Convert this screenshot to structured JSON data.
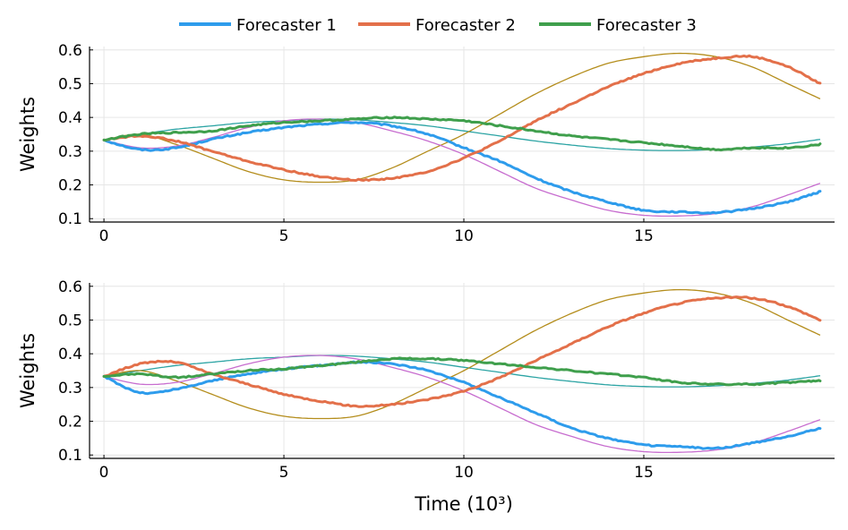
{
  "chart_data": {
    "type": "line",
    "legend": {
      "placement": "top-center",
      "entries": [
        {
          "name": "Forecaster 1",
          "color": "#2e9cec"
        },
        {
          "name": "Forecaster 2",
          "color": "#e3704a"
        },
        {
          "name": "Forecaster 3",
          "color": "#3f9f4c"
        }
      ]
    },
    "reference_colors": [
      "#2ca4a4",
      "#b48d1c",
      "#c76dcf"
    ],
    "panels": [
      {
        "ylabel": "Weights",
        "xlabel": "",
        "xlim": [
          -0.4,
          20.3
        ],
        "ylim": [
          0.09,
          0.61
        ],
        "xticks": [
          0,
          5,
          10,
          15
        ],
        "xtick_labels": [
          "0",
          "5",
          "10",
          "15"
        ],
        "yticks": [
          0.1,
          0.2,
          0.3,
          0.4,
          0.5,
          0.6
        ],
        "ytick_labels": [
          "0.1",
          "0.2",
          "0.3",
          "0.4",
          "0.5",
          "0.6"
        ],
        "grid": true,
        "x": [
          0,
          1,
          2,
          3,
          4,
          5,
          6,
          7,
          8,
          9,
          10,
          11,
          12,
          13,
          14,
          15,
          16,
          17,
          18,
          19,
          19.9
        ],
        "series": [
          {
            "name": "Forecaster 1",
            "values": [
              0.333,
              0.305,
              0.31,
              0.335,
              0.355,
              0.37,
              0.38,
              0.385,
              0.375,
              0.35,
              0.31,
              0.27,
              0.22,
              0.18,
              0.15,
              0.125,
              0.12,
              0.118,
              0.13,
              0.15,
              0.18
            ]
          },
          {
            "name": "Forecaster 2",
            "values": [
              0.333,
              0.345,
              0.33,
              0.3,
              0.27,
              0.245,
              0.225,
              0.215,
              0.22,
              0.24,
              0.28,
              0.33,
              0.39,
              0.44,
              0.49,
              0.53,
              0.56,
              0.575,
              0.58,
              0.55,
              0.5
            ]
          },
          {
            "name": "Forecaster 3",
            "values": [
              0.333,
              0.35,
              0.355,
              0.36,
              0.375,
              0.385,
              0.39,
              0.395,
              0.4,
              0.395,
              0.39,
              0.375,
              0.36,
              0.345,
              0.335,
              0.325,
              0.315,
              0.305,
              0.31,
              0.31,
              0.32
            ]
          }
        ],
        "references": [
          {
            "values": [
              0.333,
              0.35,
              0.365,
              0.375,
              0.385,
              0.39,
              0.395,
              0.393,
              0.385,
              0.375,
              0.36,
              0.345,
              0.33,
              0.318,
              0.308,
              0.303,
              0.302,
              0.305,
              0.312,
              0.322,
              0.335
            ]
          },
          {
            "values": [
              0.333,
              0.35,
              0.32,
              0.28,
              0.24,
              0.215,
              0.208,
              0.215,
              0.25,
              0.3,
              0.35,
              0.41,
              0.47,
              0.52,
              0.56,
              0.58,
              0.59,
              0.58,
              0.55,
              0.5,
              0.455
            ]
          },
          {
            "values": [
              0.333,
              0.31,
              0.315,
              0.34,
              0.37,
              0.39,
              0.395,
              0.385,
              0.36,
              0.33,
              0.29,
              0.24,
              0.19,
              0.155,
              0.125,
              0.11,
              0.108,
              0.115,
              0.135,
              0.17,
              0.205
            ]
          }
        ]
      },
      {
        "ylabel": "Weights",
        "xlabel": "Time (10³)",
        "xlim": [
          -0.4,
          20.3
        ],
        "ylim": [
          0.09,
          0.61
        ],
        "xticks": [
          0,
          5,
          10,
          15
        ],
        "xtick_labels": [
          "0",
          "5",
          "10",
          "15"
        ],
        "yticks": [
          0.1,
          0.2,
          0.3,
          0.4,
          0.5,
          0.6
        ],
        "ytick_labels": [
          "0.1",
          "0.2",
          "0.3",
          "0.4",
          "0.5",
          "0.6"
        ],
        "grid": true,
        "x": [
          0,
          1,
          2,
          3,
          4,
          5,
          6,
          7,
          8,
          9,
          10,
          11,
          12,
          13,
          14,
          15,
          16,
          17,
          18,
          19,
          19.9
        ],
        "series": [
          {
            "name": "Forecaster 1",
            "values": [
              0.333,
              0.285,
              0.295,
              0.32,
              0.34,
              0.355,
              0.365,
              0.375,
              0.37,
              0.35,
              0.315,
              0.27,
              0.225,
              0.18,
              0.15,
              0.13,
              0.125,
              0.12,
              0.135,
              0.155,
              0.18
            ]
          },
          {
            "name": "Forecaster 2",
            "values": [
              0.333,
              0.37,
              0.375,
              0.34,
              0.31,
              0.28,
              0.26,
              0.245,
              0.25,
              0.265,
              0.29,
              0.33,
              0.38,
              0.43,
              0.48,
              0.52,
              0.55,
              0.565,
              0.565,
              0.54,
              0.5
            ]
          },
          {
            "name": "Forecaster 3",
            "values": [
              0.333,
              0.34,
              0.33,
              0.34,
              0.35,
              0.355,
              0.365,
              0.375,
              0.385,
              0.385,
              0.38,
              0.37,
              0.36,
              0.35,
              0.34,
              0.33,
              0.315,
              0.31,
              0.31,
              0.315,
              0.32
            ]
          }
        ],
        "references": [
          {
            "values": [
              0.333,
              0.35,
              0.365,
              0.375,
              0.385,
              0.39,
              0.395,
              0.393,
              0.385,
              0.375,
              0.36,
              0.345,
              0.33,
              0.318,
              0.308,
              0.303,
              0.302,
              0.305,
              0.312,
              0.322,
              0.335
            ]
          },
          {
            "values": [
              0.333,
              0.35,
              0.32,
              0.28,
              0.24,
              0.215,
              0.208,
              0.215,
              0.25,
              0.3,
              0.35,
              0.41,
              0.47,
              0.52,
              0.56,
              0.58,
              0.59,
              0.58,
              0.55,
              0.5,
              0.455
            ]
          },
          {
            "values": [
              0.333,
              0.31,
              0.315,
              0.34,
              0.37,
              0.39,
              0.395,
              0.385,
              0.36,
              0.33,
              0.29,
              0.24,
              0.19,
              0.155,
              0.125,
              0.11,
              0.108,
              0.115,
              0.135,
              0.17,
              0.205
            ]
          }
        ]
      }
    ]
  }
}
